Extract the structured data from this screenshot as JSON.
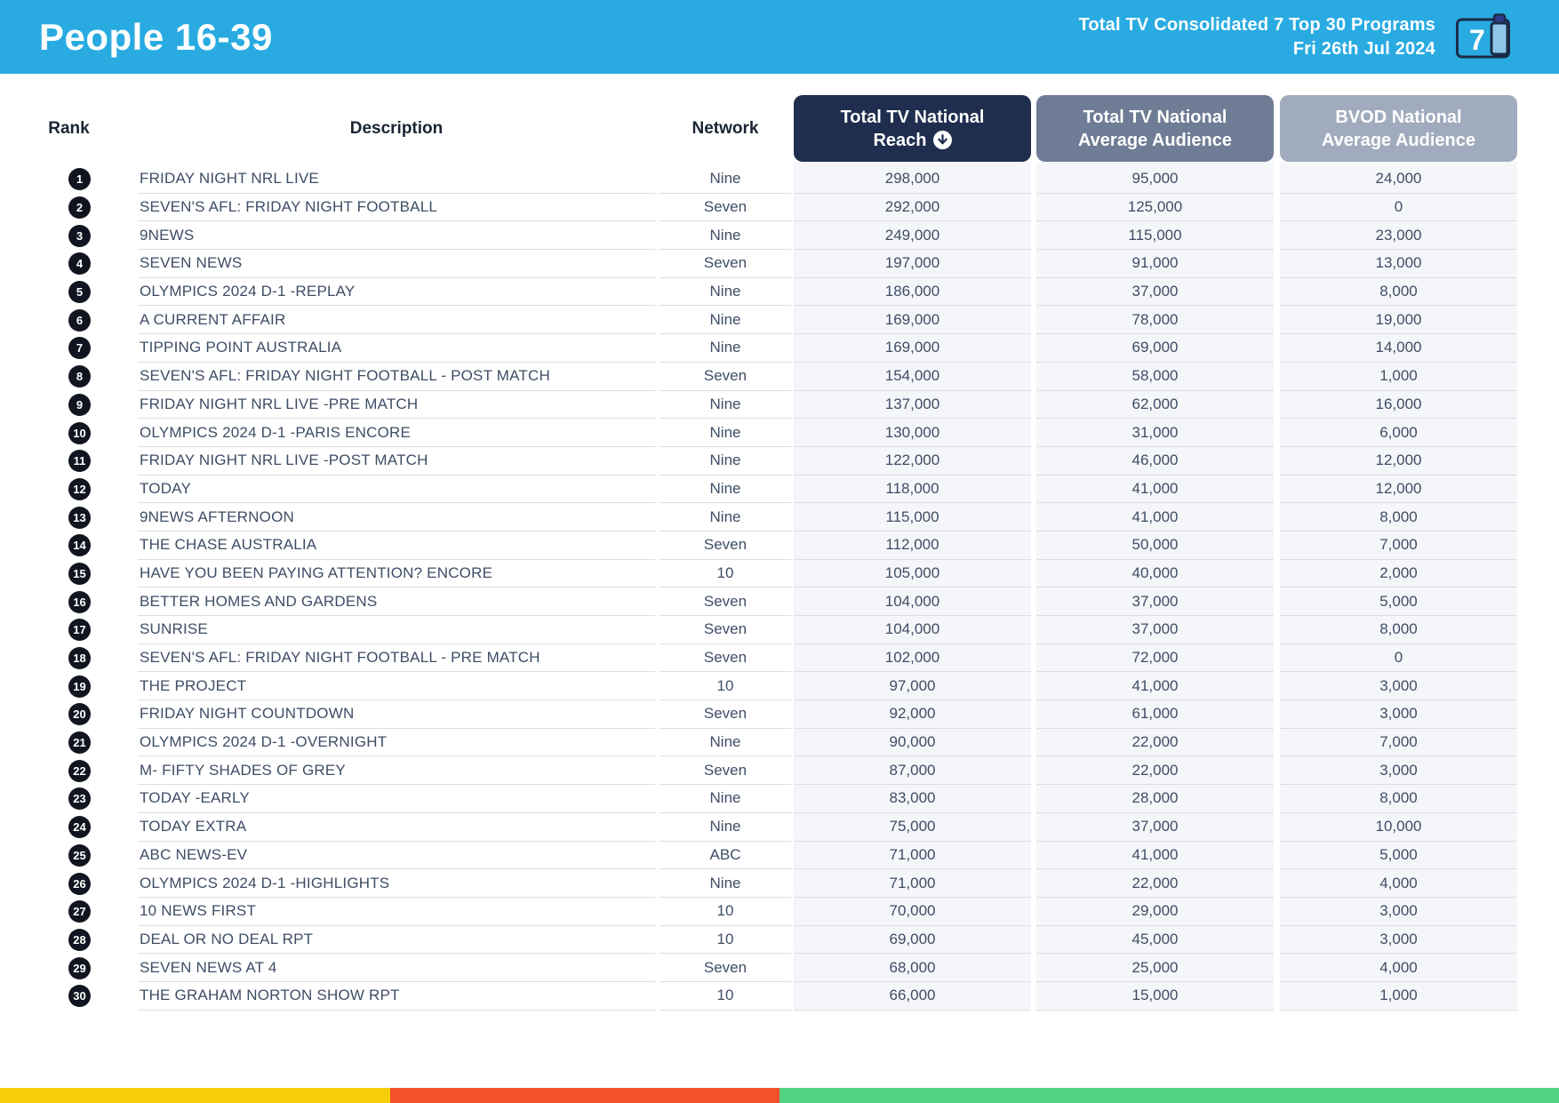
{
  "header": {
    "title": "People 16-39",
    "subtitle_line1": "Total TV Consolidated 7 Top 30 Programs",
    "subtitle_line2": "Fri 26th Jul 2024",
    "device_icon_label": "7"
  },
  "colors": {
    "banner": "#29ABE2",
    "reach_header_bg": "#1F2E4E",
    "avg_header_bg": "#6F7C95",
    "bvod_header_bg": "#A0ABBD",
    "stripe_yellow": "#F7CD0B",
    "stripe_red": "#F4502C",
    "stripe_green": "#54D284"
  },
  "table": {
    "columns": {
      "rank": "Rank",
      "description": "Description",
      "network": "Network",
      "reach": {
        "line1": "Total TV National",
        "line2": "Reach",
        "sort_icon": "sort-descending"
      },
      "avg": {
        "line1": "Total TV National",
        "line2": "Average Audience"
      },
      "bvod": {
        "line1": "BVOD National",
        "line2": "Average Audience"
      }
    },
    "rows": [
      {
        "rank": "1",
        "description": "FRIDAY NIGHT NRL LIVE",
        "network": "Nine",
        "reach": "298,000",
        "avg": "95,000",
        "bvod": "24,000"
      },
      {
        "rank": "2",
        "description": "SEVEN'S AFL: FRIDAY NIGHT FOOTBALL",
        "network": "Seven",
        "reach": "292,000",
        "avg": "125,000",
        "bvod": "0"
      },
      {
        "rank": "3",
        "description": "9NEWS",
        "network": "Nine",
        "reach": "249,000",
        "avg": "115,000",
        "bvod": "23,000"
      },
      {
        "rank": "4",
        "description": "SEVEN NEWS",
        "network": "Seven",
        "reach": "197,000",
        "avg": "91,000",
        "bvod": "13,000"
      },
      {
        "rank": "5",
        "description": "OLYMPICS 2024 D-1 -REPLAY",
        "network": "Nine",
        "reach": "186,000",
        "avg": "37,000",
        "bvod": "8,000"
      },
      {
        "rank": "6",
        "description": "A CURRENT AFFAIR",
        "network": "Nine",
        "reach": "169,000",
        "avg": "78,000",
        "bvod": "19,000"
      },
      {
        "rank": "7",
        "description": "TIPPING POINT AUSTRALIA",
        "network": "Nine",
        "reach": "169,000",
        "avg": "69,000",
        "bvod": "14,000"
      },
      {
        "rank": "8",
        "description": "SEVEN'S AFL: FRIDAY NIGHT FOOTBALL - POST MATCH",
        "network": "Seven",
        "reach": "154,000",
        "avg": "58,000",
        "bvod": "1,000"
      },
      {
        "rank": "9",
        "description": "FRIDAY NIGHT NRL LIVE -PRE MATCH",
        "network": "Nine",
        "reach": "137,000",
        "avg": "62,000",
        "bvod": "16,000"
      },
      {
        "rank": "10",
        "description": "OLYMPICS 2024 D-1 -PARIS ENCORE",
        "network": "Nine",
        "reach": "130,000",
        "avg": "31,000",
        "bvod": "6,000"
      },
      {
        "rank": "11",
        "description": "FRIDAY NIGHT NRL LIVE -POST MATCH",
        "network": "Nine",
        "reach": "122,000",
        "avg": "46,000",
        "bvod": "12,000"
      },
      {
        "rank": "12",
        "description": "TODAY",
        "network": "Nine",
        "reach": "118,000",
        "avg": "41,000",
        "bvod": "12,000"
      },
      {
        "rank": "13",
        "description": "9NEWS AFTERNOON",
        "network": "Nine",
        "reach": "115,000",
        "avg": "41,000",
        "bvod": "8,000"
      },
      {
        "rank": "14",
        "description": "THE CHASE AUSTRALIA",
        "network": "Seven",
        "reach": "112,000",
        "avg": "50,000",
        "bvod": "7,000"
      },
      {
        "rank": "15",
        "description": "HAVE YOU BEEN PAYING ATTENTION? ENCORE",
        "network": "10",
        "reach": "105,000",
        "avg": "40,000",
        "bvod": "2,000"
      },
      {
        "rank": "16",
        "description": "BETTER HOMES AND GARDENS",
        "network": "Seven",
        "reach": "104,000",
        "avg": "37,000",
        "bvod": "5,000"
      },
      {
        "rank": "17",
        "description": "SUNRISE",
        "network": "Seven",
        "reach": "104,000",
        "avg": "37,000",
        "bvod": "8,000"
      },
      {
        "rank": "18",
        "description": "SEVEN'S AFL: FRIDAY NIGHT FOOTBALL - PRE MATCH",
        "network": "Seven",
        "reach": "102,000",
        "avg": "72,000",
        "bvod": "0"
      },
      {
        "rank": "19",
        "description": "THE PROJECT",
        "network": "10",
        "reach": "97,000",
        "avg": "41,000",
        "bvod": "3,000"
      },
      {
        "rank": "20",
        "description": "FRIDAY NIGHT COUNTDOWN",
        "network": "Seven",
        "reach": "92,000",
        "avg": "61,000",
        "bvod": "3,000"
      },
      {
        "rank": "21",
        "description": "OLYMPICS 2024 D-1 -OVERNIGHT",
        "network": "Nine",
        "reach": "90,000",
        "avg": "22,000",
        "bvod": "7,000"
      },
      {
        "rank": "22",
        "description": "M- FIFTY SHADES OF GREY",
        "network": "Seven",
        "reach": "87,000",
        "avg": "22,000",
        "bvod": "3,000"
      },
      {
        "rank": "23",
        "description": "TODAY -EARLY",
        "network": "Nine",
        "reach": "83,000",
        "avg": "28,000",
        "bvod": "8,000"
      },
      {
        "rank": "24",
        "description": "TODAY EXTRA",
        "network": "Nine",
        "reach": "75,000",
        "avg": "37,000",
        "bvod": "10,000"
      },
      {
        "rank": "25",
        "description": "ABC NEWS-EV",
        "network": "ABC",
        "reach": "71,000",
        "avg": "41,000",
        "bvod": "5,000"
      },
      {
        "rank": "26",
        "description": "OLYMPICS 2024 D-1 -HIGHLIGHTS",
        "network": "Nine",
        "reach": "71,000",
        "avg": "22,000",
        "bvod": "4,000"
      },
      {
        "rank": "27",
        "description": "10 NEWS FIRST",
        "network": "10",
        "reach": "70,000",
        "avg": "29,000",
        "bvod": "3,000"
      },
      {
        "rank": "28",
        "description": "DEAL OR NO DEAL RPT",
        "network": "10",
        "reach": "69,000",
        "avg": "45,000",
        "bvod": "3,000"
      },
      {
        "rank": "29",
        "description": "SEVEN NEWS AT 4",
        "network": "Seven",
        "reach": "68,000",
        "avg": "25,000",
        "bvod": "4,000"
      },
      {
        "rank": "30",
        "description": "THE GRAHAM NORTON SHOW RPT",
        "network": "10",
        "reach": "66,000",
        "avg": "15,000",
        "bvod": "1,000"
      }
    ]
  },
  "footer": {
    "stripes": [
      "yellow",
      "red",
      "green"
    ]
  }
}
